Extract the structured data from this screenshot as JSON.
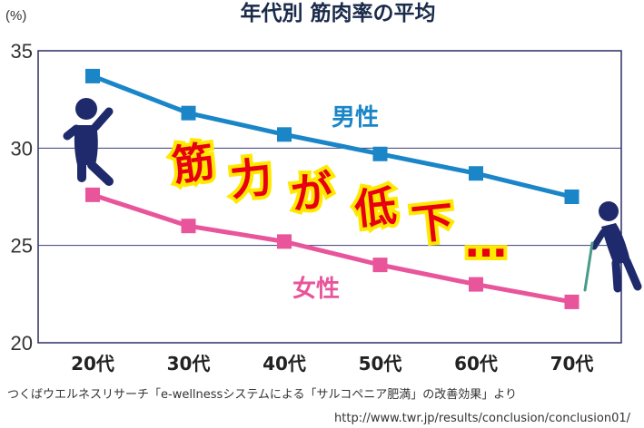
{
  "chart_data": {
    "type": "line",
    "title": "年代別 筋肉率の平均",
    "unit": "(%)",
    "categories": [
      "20代",
      "30代",
      "40代",
      "50代",
      "60代",
      "70代"
    ],
    "ylim": [
      20,
      35
    ],
    "yticks": [
      20,
      25,
      30,
      35
    ],
    "grid": true,
    "series": [
      {
        "name": "男性",
        "color": "#1a86c8",
        "values": [
          33.7,
          31.8,
          30.7,
          29.7,
          28.7,
          27.5
        ]
      },
      {
        "name": "女性",
        "color": "#e8559a",
        "values": [
          27.6,
          26.0,
          25.2,
          24.0,
          23.0,
          22.1
        ]
      }
    ],
    "annotation": {
      "text": "筋力が低下…",
      "chars": [
        "筋",
        "力",
        "が",
        "低",
        "下",
        "…"
      ]
    }
  },
  "source": {
    "line1": "つくばウエルネスリサーチ「e-wellnessシステムによる「サルコペニア肥満」の改善効果」より",
    "line2": "http://www.twr.jp/results/conclusion/conclusion01/"
  },
  "icons": {
    "young": "standing-person-icon",
    "old": "elderly-person-with-cane-icon"
  }
}
